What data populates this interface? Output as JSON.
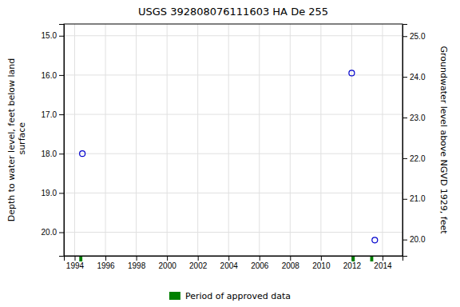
{
  "chart_data": {
    "type": "scatter",
    "title": "USGS 392808076111603 HA De 255",
    "ylabel": "Depth to water level, feet below land\n surface",
    "y2label": "Groundwater level above NGVD 1929, feet",
    "series": [
      {
        "type": "scatter",
        "color": "#0000cc",
        "marker": "open-circle",
        "x": [
          1994.5,
          2012.0,
          2013.5
        ],
        "values": [
          18.0,
          15.95,
          20.2
        ]
      },
      {
        "type": "span",
        "name": "Period of approved data",
        "color": "#008000",
        "x": [
          1994.4,
          2012.1,
          2013.3
        ],
        "widths": [
          0.2,
          0.2,
          0.2
        ]
      }
    ],
    "xlim": [
      1993.3,
      2015.3
    ],
    "xticks": [
      1994,
      1996,
      1998,
      2000,
      2002,
      2004,
      2006,
      2008,
      2010,
      2012,
      2014
    ],
    "ylim": [
      20.6,
      14.7
    ],
    "yticks": [
      {
        "value": 15.0,
        "label": "15.0"
      },
      {
        "value": 16.0,
        "label": "16.0"
      },
      {
        "value": 17.0,
        "label": "17.0"
      },
      {
        "value": 18.0,
        "label": "18.0"
      },
      {
        "value": 19.0,
        "label": "19.0"
      },
      {
        "value": 20.0,
        "label": "20.0"
      }
    ],
    "y2lim": [
      19.6,
      25.3
    ],
    "y2ticks": [
      {
        "value": 25.0,
        "label": "25.0"
      },
      {
        "value": 24.0,
        "label": "24.0"
      },
      {
        "value": 23.0,
        "label": "23.0"
      },
      {
        "value": 22.0,
        "label": "22.0"
      },
      {
        "value": 21.0,
        "label": "21.0"
      },
      {
        "value": 20.0,
        "label": "20.0"
      }
    ],
    "grid": true,
    "legend": "bottom"
  }
}
